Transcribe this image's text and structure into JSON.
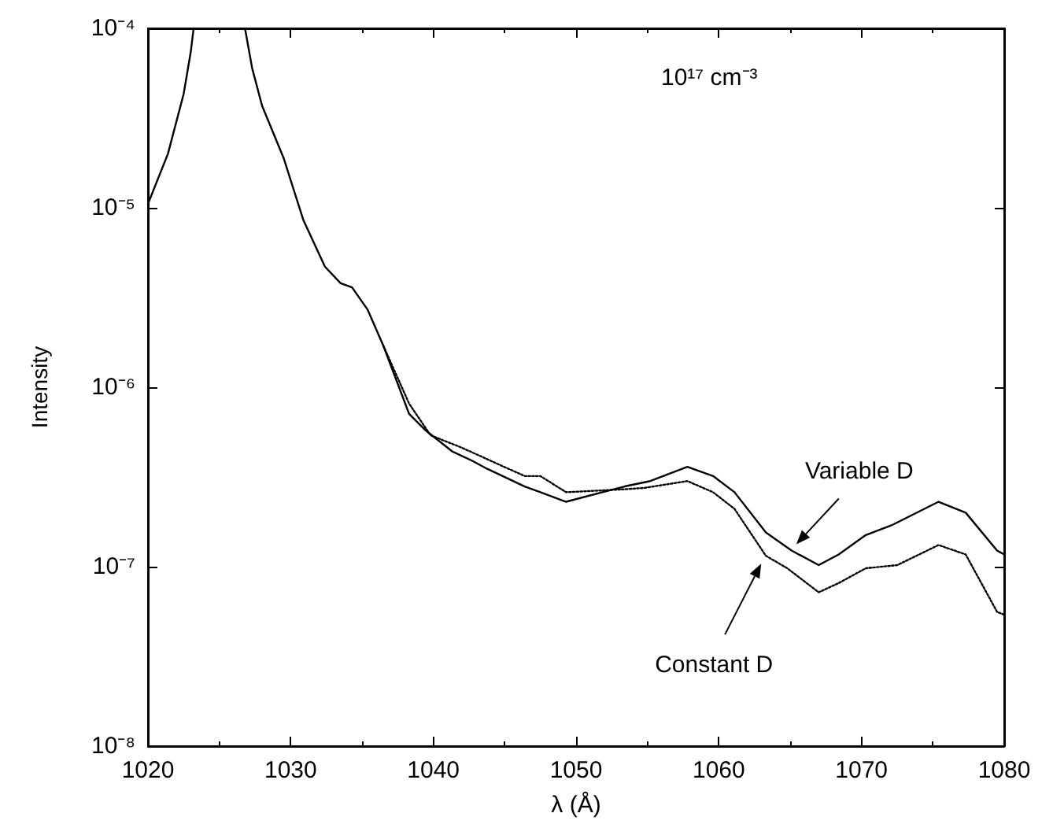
{
  "chart_data": {
    "type": "line",
    "xlabel": "λ (Å)",
    "ylabel": "Intensity",
    "log": "y",
    "xlim": [
      1020,
      1080
    ],
    "xticks": [
      1020,
      1030,
      1040,
      1050,
      1060,
      1070,
      1080
    ],
    "ylim": [
      1e-08,
      0.0001
    ],
    "yticks": [
      {
        "value": 1e-08,
        "label": "10⁻⁸"
      },
      {
        "value": 1e-07,
        "label": "10⁻⁷"
      },
      {
        "value": 1e-06,
        "label": "10⁻⁶"
      },
      {
        "value": 1e-05,
        "label": "10⁻⁵"
      },
      {
        "value": 0.0001,
        "label": "10⁻⁴"
      }
    ],
    "grid": false,
    "legend": false,
    "marker": "none",
    "series": [
      {
        "name": "Variable D",
        "color": "#000000",
        "line_style": "solid",
        "x": [
          1020,
          1021.4,
          1022.5,
          1023.0,
          1023.2,
          1025,
          1026.8,
          1027.3,
          1028.0,
          1029.5,
          1030.9,
          1032.4,
          1033.5,
          1034.3,
          1035.4,
          1036.5,
          1038.3,
          1039.4,
          1041.3,
          1042.7,
          1043.8,
          1046.4,
          1047.5,
          1049.3,
          1053.4,
          1055.2,
          1057.8,
          1059.6,
          1061.1,
          1063.3,
          1065.1,
          1067.0,
          1068.4,
          1070.3,
          1072.1,
          1075.4,
          1077.3,
          1079.5,
          1080
        ],
        "values": [
          1.05e-05,
          2e-05,
          4.3e-05,
          7.4e-05,
          0.0001,
          null,
          0.0001,
          6e-05,
          3.7e-05,
          1.9e-05,
          8.5e-06,
          4.7e-06,
          3.8e-06,
          3.6e-06,
          2.7e-06,
          1.7e-06,
          7.1e-07,
          5.8e-07,
          4.4e-07,
          3.9e-07,
          3.5e-07,
          2.8e-07,
          2.6e-07,
          2.3e-07,
          2.8e-07,
          3e-07,
          3.6e-07,
          3.2e-07,
          2.6e-07,
          1.55e-07,
          1.23e-07,
          1.02e-07,
          1.17e-07,
          1.5e-07,
          1.7e-07,
          2.3e-07,
          2e-07,
          1.23e-07,
          1.17e-07
        ]
      },
      {
        "name": "Constant D",
        "color": "#000000",
        "line_style": "dotted",
        "x": [
          1036.5,
          1038.3,
          1039.8,
          1042,
          1045.3,
          1046.4,
          1047.5,
          1049.3,
          1053.4,
          1054.8,
          1057.8,
          1059.6,
          1061.1,
          1063.3,
          1064.8,
          1067,
          1068.4,
          1070.3,
          1072.5,
          1075.4,
          1077.3,
          1079.5,
          1080
        ],
        "values": [
          1.7e-06,
          8.1e-07,
          5.4e-07,
          4.6e-07,
          3.5e-07,
          3.2e-07,
          3.2e-07,
          2.6e-07,
          2.7e-07,
          2.75e-07,
          3e-07,
          2.6e-07,
          2.1e-07,
          1.15e-07,
          9.8e-08,
          7.2e-08,
          8.1e-08,
          9.8e-08,
          1.02e-07,
          1.32e-07,
          1.17e-07,
          5.6e-08,
          5.4e-08
        ]
      }
    ],
    "annotations": [
      "10¹⁷ cm⁻³"
    ]
  }
}
